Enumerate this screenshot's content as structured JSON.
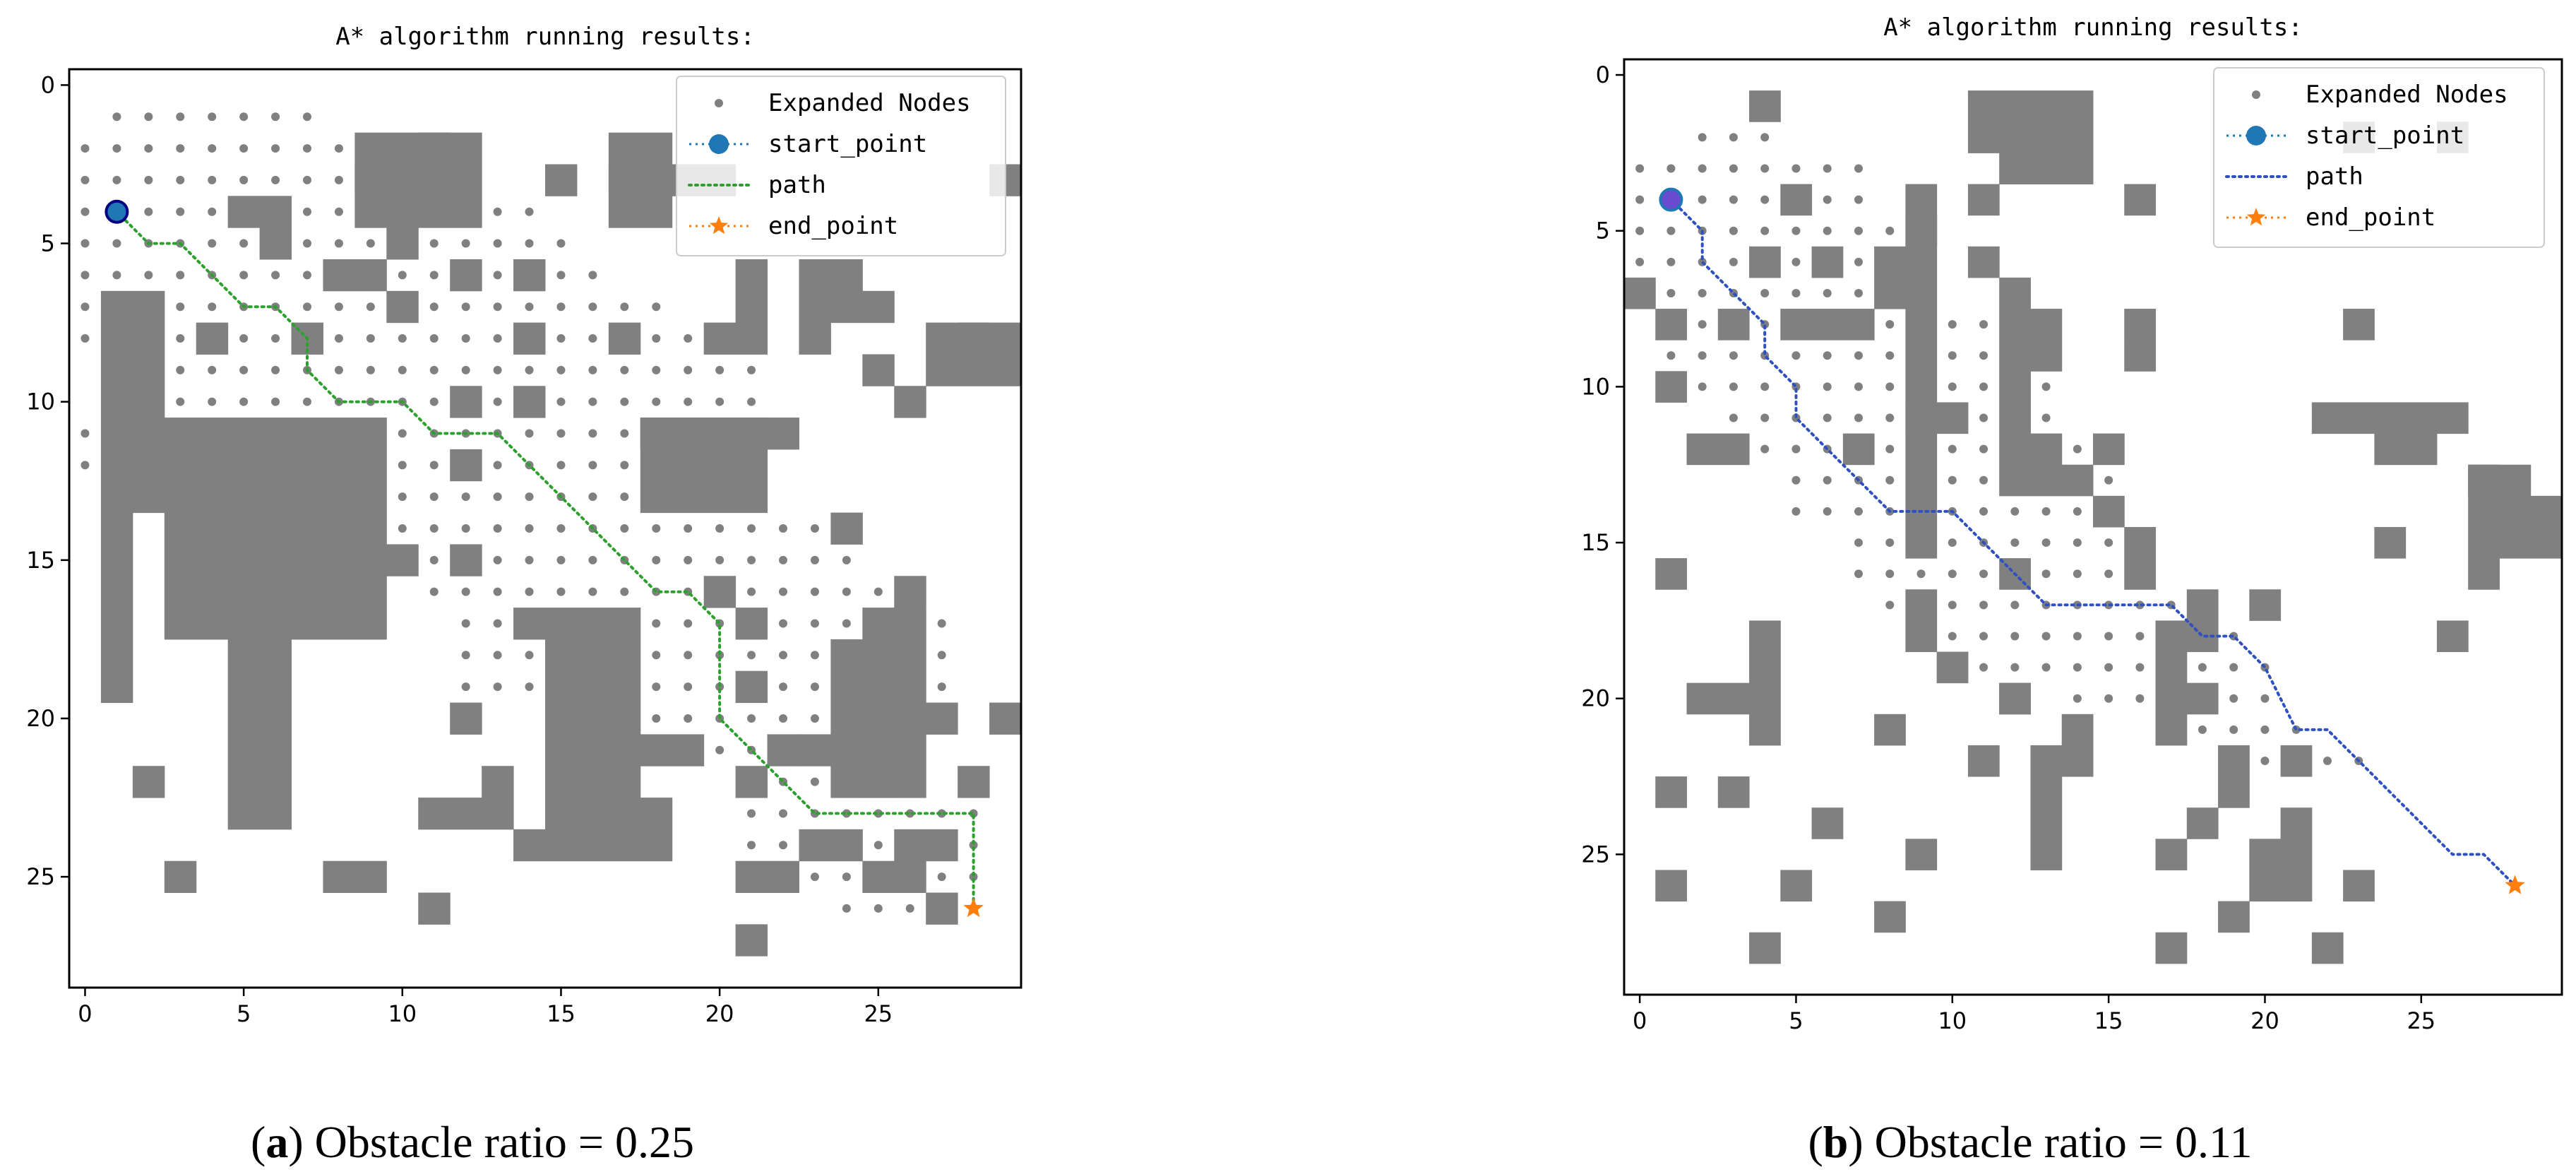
{
  "colors": {
    "obstacle": "#808080",
    "node": "#808080",
    "start": "#1f77b4",
    "start_edge_a": "#000080",
    "start_fill_b": "#6a4ad0",
    "end": "#ff7f0e",
    "path_a": "#2ca02c",
    "path_b": "#3050c0"
  },
  "chart_data": [
    {
      "type": "scatter",
      "panel": "a",
      "title": "A* algorithm running results:",
      "caption_letter": "a",
      "caption_text": " Obstacle ratio = 0.25",
      "xlim": [
        -0.5,
        29.5
      ],
      "ylim": [
        28.5,
        -0.5
      ],
      "xticks": [
        0,
        5,
        10,
        15,
        20,
        25
      ],
      "yticks": [
        0,
        5,
        10,
        15,
        20,
        25
      ],
      "legend": [
        "Expanded Nodes",
        "start_point",
        "path",
        "end_point"
      ],
      "start_point": [
        1,
        4
      ],
      "end_point": [
        28,
        26
      ],
      "path": [
        [
          1,
          4
        ],
        [
          2,
          5
        ],
        [
          3,
          5
        ],
        [
          4,
          6
        ],
        [
          5,
          7
        ],
        [
          6,
          7
        ],
        [
          7,
          8
        ],
        [
          7,
          9
        ],
        [
          8,
          10
        ],
        [
          9,
          10
        ],
        [
          10,
          10
        ],
        [
          11,
          11
        ],
        [
          12,
          11
        ],
        [
          13,
          11
        ],
        [
          14,
          12
        ],
        [
          15,
          13
        ],
        [
          16,
          14
        ],
        [
          17,
          15
        ],
        [
          18,
          16
        ],
        [
          19,
          16
        ],
        [
          20,
          17
        ],
        [
          20,
          18
        ],
        [
          20,
          19
        ],
        [
          20,
          20
        ],
        [
          21,
          21
        ],
        [
          22,
          22
        ],
        [
          23,
          23
        ],
        [
          24,
          23
        ],
        [
          25,
          23
        ],
        [
          26,
          23
        ],
        [
          27,
          23
        ],
        [
          28,
          23
        ],
        [
          28,
          24
        ],
        [
          28,
          25
        ],
        [
          28,
          26
        ]
      ],
      "obstacles": [
        [
          11,
          2
        ],
        [
          9,
          3
        ],
        [
          15,
          3
        ],
        [
          20,
          3
        ],
        [
          29,
          3
        ],
        [
          10,
          5
        ],
        [
          10,
          7
        ],
        [
          14,
          8
        ],
        [
          17,
          8
        ],
        [
          20,
          8
        ],
        [
          28,
          8
        ],
        [
          26,
          10
        ],
        [
          26,
          16
        ],
        [
          9,
          15
        ],
        [
          14,
          17
        ],
        [
          16,
          18
        ],
        [
          12,
          20
        ],
        [
          27,
          20
        ],
        [
          29,
          20
        ],
        [
          2,
          22
        ],
        [
          13,
          22
        ],
        [
          25,
          22
        ],
        [
          28,
          22
        ],
        [
          14,
          24
        ],
        [
          24,
          24
        ],
        [
          3,
          25
        ],
        [
          11,
          26
        ],
        [
          21,
          27
        ]
      ],
      "obstacle_rects": [
        [
          9,
          2,
          12,
          4
        ],
        [
          17,
          2,
          18,
          4
        ],
        [
          17,
          3,
          19,
          3
        ],
        [
          5,
          4,
          6,
          4
        ],
        [
          6,
          5,
          6,
          5
        ],
        [
          8,
          6,
          9,
          6
        ],
        [
          12,
          6,
          12,
          6
        ],
        [
          14,
          6,
          14,
          6
        ],
        [
          21,
          6,
          21,
          8
        ],
        [
          23,
          6,
          24,
          7
        ],
        [
          25,
          7,
          25,
          7
        ],
        [
          23,
          8,
          23,
          8
        ],
        [
          25,
          9,
          25,
          9
        ],
        [
          27,
          8,
          29,
          9
        ],
        [
          1,
          7,
          2,
          13
        ],
        [
          1,
          14,
          1,
          19
        ],
        [
          3,
          11,
          9,
          17
        ],
        [
          5,
          18,
          6,
          23
        ],
        [
          18,
          11,
          21,
          13
        ],
        [
          18,
          11,
          22,
          11
        ],
        [
          12,
          10,
          12,
          10
        ],
        [
          14,
          10,
          14,
          10
        ],
        [
          4,
          8,
          4,
          8
        ],
        [
          7,
          8,
          7,
          8
        ],
        [
          12,
          12,
          12,
          12
        ],
        [
          10,
          15,
          10,
          15
        ],
        [
          12,
          15,
          12,
          15
        ],
        [
          24,
          14,
          24,
          14
        ],
        [
          20,
          16,
          20,
          16
        ],
        [
          21,
          17,
          21,
          17
        ],
        [
          21,
          19,
          21,
          19
        ],
        [
          21,
          22,
          21,
          22
        ],
        [
          15,
          17,
          17,
          24
        ],
        [
          18,
          21,
          19,
          21
        ],
        [
          15,
          21,
          15,
          21
        ],
        [
          25,
          17,
          26,
          22
        ],
        [
          24,
          18,
          24,
          22
        ],
        [
          23,
          21,
          23,
          21
        ],
        [
          22,
          21,
          22,
          21
        ],
        [
          18,
          23,
          18,
          24
        ],
        [
          11,
          23,
          13,
          23
        ],
        [
          23,
          24,
          23,
          24
        ],
        [
          21,
          25,
          22,
          25
        ],
        [
          25,
          25,
          26,
          25
        ],
        [
          26,
          24,
          27,
          24
        ],
        [
          27,
          26,
          27,
          26
        ],
        [
          8,
          25,
          9,
          25
        ]
      ],
      "expanded_rows": [
        [
          1,
          1,
          7
        ],
        [
          2,
          0,
          8
        ],
        [
          3,
          0,
          8
        ],
        [
          4,
          0,
          14
        ],
        [
          5,
          0,
          15
        ],
        [
          6,
          0,
          16
        ],
        [
          7,
          0,
          18
        ],
        [
          8,
          0,
          20
        ],
        [
          9,
          2,
          21
        ],
        [
          10,
          2,
          21
        ],
        [
          11,
          0,
          19
        ],
        [
          12,
          0,
          19
        ],
        [
          13,
          10,
          20
        ],
        [
          14,
          10,
          23
        ],
        [
          15,
          10,
          24
        ],
        [
          16,
          11,
          25
        ],
        [
          17,
          12,
          27
        ],
        [
          18,
          12,
          27
        ],
        [
          19,
          12,
          27
        ],
        [
          20,
          15,
          27
        ],
        [
          21,
          19,
          26
        ],
        [
          22,
          21,
          26
        ],
        [
          23,
          21,
          28
        ],
        [
          24,
          21,
          28
        ],
        [
          25,
          21,
          28
        ],
        [
          26,
          24,
          28
        ]
      ]
    },
    {
      "type": "scatter",
      "panel": "b",
      "title": "A* algorithm running results:",
      "caption_letter": "b",
      "caption_text": " Obstacle ratio = 0.11",
      "xlim": [
        -0.5,
        29.5
      ],
      "ylim": [
        29.5,
        -0.5
      ],
      "xticks": [
        0,
        5,
        10,
        15,
        20,
        25
      ],
      "yticks": [
        0,
        5,
        10,
        15,
        20,
        25
      ],
      "legend": [
        "Expanded Nodes",
        "start_point",
        "path",
        "end_point"
      ],
      "start_point": [
        1,
        4
      ],
      "end_point": [
        28,
        26
      ],
      "path": [
        [
          1,
          4
        ],
        [
          2,
          5
        ],
        [
          2,
          6
        ],
        [
          3,
          7
        ],
        [
          4,
          8
        ],
        [
          4,
          9
        ],
        [
          5,
          10
        ],
        [
          5,
          11
        ],
        [
          6,
          12
        ],
        [
          7,
          13
        ],
        [
          8,
          14
        ],
        [
          9,
          14
        ],
        [
          10,
          14
        ],
        [
          11,
          15
        ],
        [
          12,
          16
        ],
        [
          13,
          17
        ],
        [
          14,
          17
        ],
        [
          15,
          17
        ],
        [
          16,
          17
        ],
        [
          17,
          17
        ],
        [
          18,
          18
        ],
        [
          19,
          18
        ],
        [
          20,
          19
        ],
        [
          21,
          21
        ],
        [
          22,
          21
        ],
        [
          23,
          22
        ],
        [
          24,
          23
        ],
        [
          25,
          24
        ],
        [
          26,
          25
        ],
        [
          27,
          25
        ],
        [
          28,
          26
        ]
      ],
      "obstacles": [
        [
          4,
          1
        ],
        [
          23,
          2
        ],
        [
          26,
          2
        ],
        [
          16,
          4
        ],
        [
          11,
          6
        ],
        [
          12,
          7
        ],
        [
          23,
          8
        ],
        [
          16,
          8
        ],
        [
          16,
          9
        ],
        [
          4,
          6
        ],
        [
          3,
          8
        ],
        [
          1,
          10
        ],
        [
          10,
          11
        ],
        [
          15,
          14
        ],
        [
          12,
          16
        ],
        [
          27,
          16
        ],
        [
          1,
          16
        ],
        [
          18,
          17
        ],
        [
          20,
          17
        ],
        [
          18,
          18
        ],
        [
          26,
          18
        ],
        [
          10,
          19
        ],
        [
          12,
          20
        ],
        [
          18,
          20
        ],
        [
          8,
          21
        ],
        [
          11,
          22
        ],
        [
          21,
          22
        ],
        [
          1,
          23
        ],
        [
          3,
          23
        ],
        [
          6,
          24
        ],
        [
          9,
          25
        ],
        [
          17,
          25
        ],
        [
          1,
          26
        ],
        [
          5,
          26
        ],
        [
          23,
          26
        ],
        [
          8,
          27
        ],
        [
          19,
          27
        ],
        [
          4,
          28
        ],
        [
          17,
          28
        ],
        [
          22,
          28
        ]
      ],
      "obstacle_rects": [
        [
          11,
          1,
          14,
          2
        ],
        [
          12,
          3,
          14,
          3
        ],
        [
          5,
          4,
          5,
          4
        ],
        [
          6,
          6,
          6,
          6
        ],
        [
          8,
          6,
          8,
          6
        ],
        [
          11,
          4,
          11,
          4
        ],
        [
          9,
          5,
          9,
          5
        ],
        [
          0,
          7,
          0,
          7
        ],
        [
          1,
          8,
          1,
          8
        ],
        [
          5,
          8,
          7,
          8
        ],
        [
          8,
          7,
          8,
          7
        ],
        [
          9,
          4,
          9,
          15
        ],
        [
          12,
          8,
          13,
          9
        ],
        [
          12,
          10,
          12,
          13
        ],
        [
          13,
          12,
          13,
          13
        ],
        [
          14,
          13,
          14,
          13
        ],
        [
          15,
          12,
          15,
          12
        ],
        [
          9,
          17,
          9,
          18
        ],
        [
          2,
          12,
          3,
          12
        ],
        [
          7,
          12,
          7,
          12
        ],
        [
          9,
          11,
          9,
          11
        ],
        [
          16,
          15,
          16,
          16
        ],
        [
          4,
          18,
          4,
          21
        ],
        [
          2,
          20,
          3,
          20
        ],
        [
          22,
          11,
          26,
          11
        ],
        [
          24,
          12,
          25,
          12
        ],
        [
          27,
          13,
          28,
          13
        ],
        [
          28,
          14,
          29,
          14
        ],
        [
          27,
          13,
          27,
          15
        ],
        [
          28,
          15,
          29,
          15
        ],
        [
          24,
          15,
          24,
          15
        ],
        [
          12,
          20,
          12,
          20
        ],
        [
          17,
          18,
          17,
          20
        ],
        [
          19,
          22,
          19,
          23
        ],
        [
          13,
          22,
          13,
          25
        ],
        [
          20,
          25,
          20,
          26
        ],
        [
          21,
          24,
          21,
          26
        ],
        [
          17,
          21,
          17,
          21
        ],
        [
          14,
          21,
          14,
          22
        ],
        [
          18,
          24,
          18,
          24
        ]
      ],
      "expanded_rows": [
        [
          2,
          2,
          4
        ],
        [
          3,
          0,
          7
        ],
        [
          4,
          0,
          7
        ],
        [
          5,
          0,
          8
        ],
        [
          6,
          0,
          8
        ],
        [
          7,
          0,
          8
        ],
        [
          8,
          1,
          11
        ],
        [
          9,
          1,
          13
        ],
        [
          10,
          2,
          13
        ],
        [
          11,
          3,
          13
        ],
        [
          12,
          4,
          14
        ],
        [
          13,
          5,
          15
        ],
        [
          14,
          5,
          15
        ],
        [
          15,
          7,
          15
        ],
        [
          16,
          7,
          16
        ],
        [
          17,
          8,
          17
        ],
        [
          18,
          10,
          19
        ],
        [
          19,
          11,
          20
        ],
        [
          20,
          14,
          20
        ],
        [
          21,
          18,
          21
        ],
        [
          22,
          19,
          23
        ]
      ]
    }
  ]
}
